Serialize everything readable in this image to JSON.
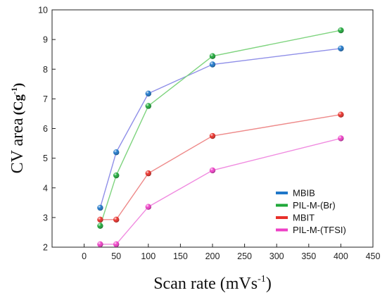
{
  "chart_data": {
    "type": "line",
    "xlabel": "Scan rate (mVs",
    "xlabel_sup": "-1",
    "xlabel_close": ")",
    "ylabel": "CV area",
    "ylabel_unit": "(Cg",
    "ylabel_sup": "-1",
    "ylabel_close": ")",
    "xlim": [
      -50,
      450
    ],
    "ylim": [
      2,
      10
    ],
    "xticks": [
      0,
      50,
      100,
      150,
      200,
      250,
      300,
      350,
      400,
      450
    ],
    "yticks": [
      2,
      3,
      4,
      5,
      6,
      7,
      8,
      9,
      10
    ],
    "legend_position": "bottom-right",
    "grid": false,
    "series": [
      {
        "name": "MBIB",
        "color": "#1f77c9",
        "line": "#8f8fe8",
        "x": [
          25,
          50,
          100,
          200,
          400
        ],
        "y": [
          3.33,
          5.2,
          7.18,
          8.16,
          8.7
        ]
      },
      {
        "name": "PIL-M-(Br)",
        "color": "#1fa83a",
        "line": "#7fd47f",
        "x": [
          25,
          50,
          100,
          200,
          400
        ],
        "y": [
          2.72,
          4.42,
          6.76,
          8.44,
          9.31
        ]
      },
      {
        "name": "MBIT",
        "color": "#e8302a",
        "line": "#ee8a8a",
        "x": [
          25,
          50,
          100,
          200,
          400
        ],
        "y": [
          2.93,
          2.93,
          4.49,
          5.75,
          6.47
        ]
      },
      {
        "name": "PIL-M-(TFSI)",
        "color": "#ee3fc6",
        "line": "#f08be0",
        "x": [
          25,
          50,
          100,
          200,
          400
        ],
        "y": [
          2.1,
          2.1,
          3.36,
          4.59,
          5.67
        ]
      }
    ]
  }
}
